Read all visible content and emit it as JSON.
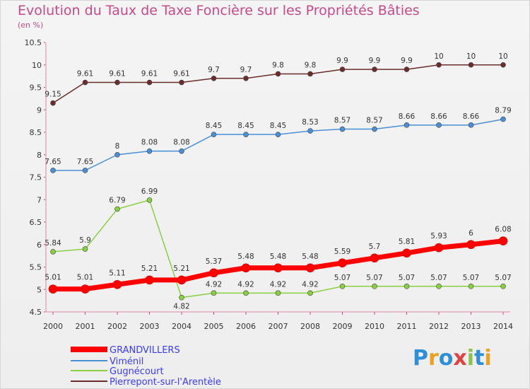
{
  "chart_data": {
    "type": "line",
    "title": "Evolution du Taux de Taxe Foncière sur les Propriétés Bâties",
    "unit_label": "(en %)",
    "ylim": [
      4.5,
      10.5
    ],
    "yticks": [
      "4.5",
      "5",
      "5.5",
      "6",
      "6.5",
      "7",
      "7.5",
      "8",
      "8.5",
      "9",
      "9.5",
      "10",
      "10.5"
    ],
    "categories": [
      "2000",
      "2001",
      "2002",
      "2003",
      "2004",
      "2005",
      "2006",
      "2007",
      "2008",
      "2009",
      "2010",
      "2011",
      "2012",
      "2013",
      "2014"
    ],
    "series": [
      {
        "name": "Pierrepont-sur-l'Arentèle",
        "color": "#6b2c2c",
        "values": [
          9.15,
          9.61,
          9.61,
          9.61,
          9.61,
          9.7,
          9.7,
          9.8,
          9.8,
          9.9,
          9.9,
          9.9,
          10,
          10,
          10
        ]
      },
      {
        "name": "Viménil",
        "color": "#4a8fd6",
        "values": [
          7.65,
          7.65,
          8,
          8.08,
          8.08,
          8.45,
          8.45,
          8.45,
          8.53,
          8.57,
          8.57,
          8.66,
          8.66,
          8.66,
          8.79
        ]
      },
      {
        "name": "Gugnécourt",
        "color": "#88d040",
        "values": [
          5.84,
          5.9,
          6.79,
          6.99,
          4.82,
          4.92,
          4.92,
          4.92,
          4.92,
          5.07,
          5.07,
          5.07,
          5.07,
          5.07,
          5.07
        ]
      },
      {
        "name": "GRANDVILLERS",
        "color": "#ff0000",
        "values": [
          5.01,
          5.01,
          5.11,
          5.21,
          5.21,
          5.37,
          5.48,
          5.48,
          5.48,
          5.59,
          5.7,
          5.81,
          5.93,
          6,
          6.08
        ]
      }
    ],
    "data_labels": {
      "Pierrepont-sur-l'Arentèle": [
        "9.15",
        "9.61",
        "9.61",
        "9.61",
        "9.61",
        "9.7",
        "9.7",
        "9.8",
        "9.8",
        "9.9",
        "9.9",
        "9.9",
        "10",
        "10",
        "10"
      ],
      "Viménil": [
        "7.65",
        "7.65",
        "8",
        "8.08",
        "8.08",
        "8.45",
        "8.45",
        "8.45",
        "8.53",
        "8.57",
        "8.57",
        "8.66",
        "8.66",
        "8.66",
        "8.79"
      ],
      "Gugnécourt": [
        "5.84",
        "5.9",
        "6.79",
        "6.99",
        "4.82",
        "4.92",
        "4.92",
        "4.92",
        "4.92",
        "5.07",
        "5.07",
        "5.07",
        "5.07",
        "5.07",
        "5.07"
      ],
      "GRANDVILLERS": [
        "5.01",
        "5.01",
        "5.11",
        "5.21",
        "5.21",
        "5.37",
        "5.48",
        "5.48",
        "5.48",
        "5.59",
        "5.7",
        "5.81",
        "5.93",
        "6",
        "6.08"
      ]
    },
    "legend": [
      "GRANDVILLERS",
      "Viménil",
      "Gugnécourt",
      "Pierrepont-sur-l'Arentèle"
    ],
    "legend_position": "bottom-left"
  },
  "logo": {
    "text": "Proxiti"
  }
}
